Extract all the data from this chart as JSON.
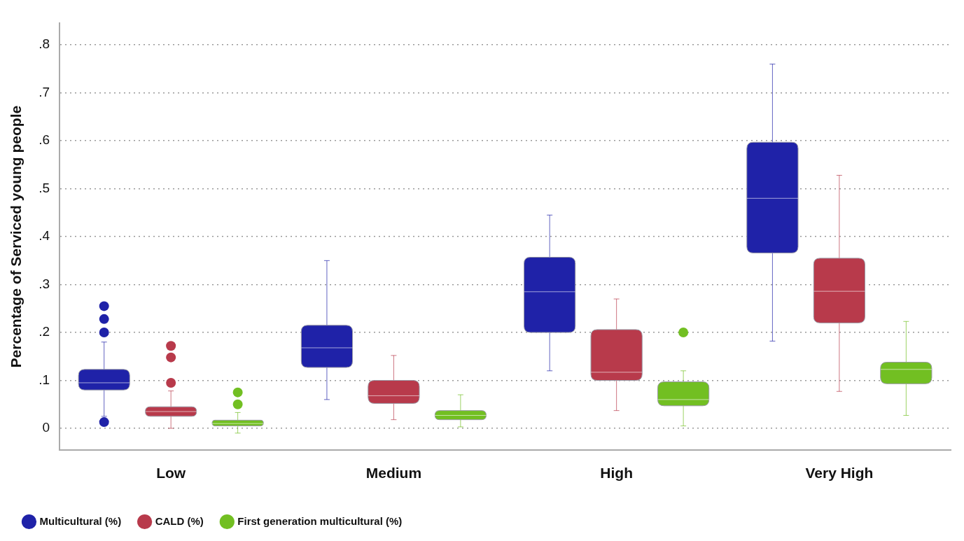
{
  "chart_data": {
    "type": "box",
    "ylabel": "Percentage of Serviced young people",
    "categories": [
      "Low",
      "Medium",
      "High",
      "Very High"
    ],
    "ylim": [
      -0.045,
      0.845
    ],
    "yticks": [
      {
        "value": 0,
        "label": "0"
      },
      {
        "value": 0.1,
        "label": ".1"
      },
      {
        "value": 0.2,
        "label": ".2"
      },
      {
        "value": 0.3,
        "label": ".3"
      },
      {
        "value": 0.4,
        "label": ".4"
      },
      {
        "value": 0.5,
        "label": ".5"
      },
      {
        "value": 0.6,
        "label": ".6"
      },
      {
        "value": 0.7,
        "label": ".7"
      },
      {
        "value": 0.8,
        "label": ".8"
      }
    ],
    "grid": "y",
    "legend": "bottom left",
    "series": [
      {
        "name": "Multicultural (%)",
        "color": "#1f22a8",
        "boxes": [
          {
            "low": 0.025,
            "q1": 0.08,
            "median": 0.095,
            "q3": 0.123,
            "high": 0.18,
            "outliers": [
              0.255,
              0.228,
              0.2,
              0.013
            ]
          },
          {
            "low": 0.06,
            "q1": 0.127,
            "median": 0.168,
            "q3": 0.215,
            "high": 0.35
          },
          {
            "low": 0.12,
            "q1": 0.2,
            "median": 0.285,
            "q3": 0.357,
            "high": 0.445
          },
          {
            "low": 0.182,
            "q1": 0.366,
            "median": 0.48,
            "q3": 0.597,
            "high": 0.76
          }
        ]
      },
      {
        "name": "CALD (%)",
        "color": "#b83a4b",
        "boxes": [
          {
            "low": 0.0,
            "q1": 0.025,
            "median": 0.035,
            "q3": 0.045,
            "high": 0.078,
            "outliers": [
              0.172,
              0.148,
              0.095
            ]
          },
          {
            "low": 0.018,
            "q1": 0.052,
            "median": 0.068,
            "q3": 0.1,
            "high": 0.152
          },
          {
            "low": 0.037,
            "q1": 0.1,
            "median": 0.117,
            "q3": 0.206,
            "high": 0.27
          },
          {
            "low": 0.077,
            "q1": 0.22,
            "median": 0.286,
            "q3": 0.355,
            "high": 0.528
          }
        ]
      },
      {
        "name": "First generation multicultural (%)",
        "color": "#72bf22",
        "boxes": [
          {
            "low": -0.01,
            "q1": 0.005,
            "median": 0.01,
            "q3": 0.017,
            "high": 0.033,
            "outliers": [
              0.075,
              0.05
            ]
          },
          {
            "low": 0.003,
            "q1": 0.018,
            "median": 0.027,
            "q3": 0.037,
            "high": 0.07
          },
          {
            "low": 0.005,
            "q1": 0.047,
            "median": 0.06,
            "q3": 0.097,
            "high": 0.12,
            "outliers": [
              0.2
            ]
          },
          {
            "low": 0.027,
            "q1": 0.093,
            "median": 0.123,
            "q3": 0.138,
            "high": 0.223
          }
        ]
      }
    ]
  }
}
